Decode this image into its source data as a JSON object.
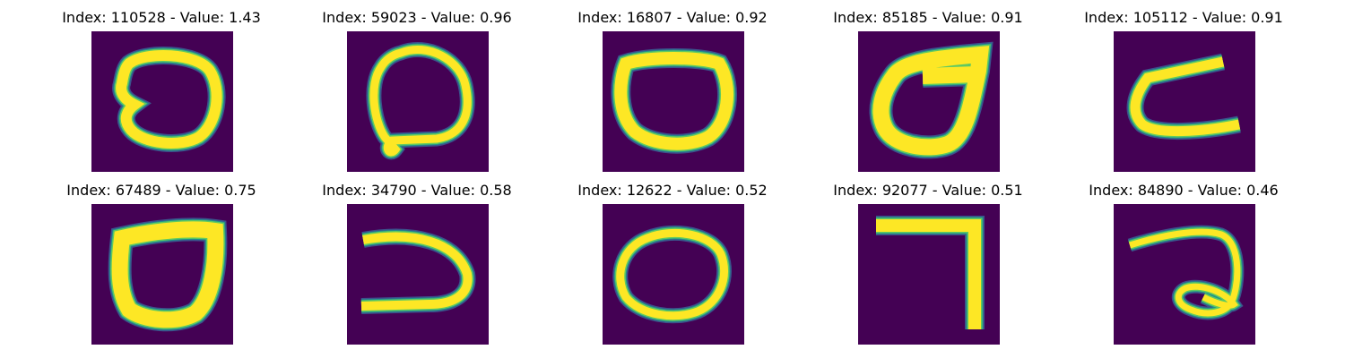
{
  "figure": {
    "palette": {
      "background": "#440154",
      "low": "#3b528b",
      "mid": "#21918c",
      "highmid": "#5ec962",
      "high": "#fde725"
    }
  },
  "chart_data": {
    "type": "image-grid",
    "colormap": "viridis",
    "grid": {
      "rows": 2,
      "cols": 5
    },
    "panels": [
      {
        "title": "Index: 110528 - Value: 1.43",
        "index": 110528,
        "value": 1.43,
        "glyph": "ring-dent"
      },
      {
        "title": "Index: 59023 - Value: 0.96",
        "index": 59023,
        "value": 0.96,
        "glyph": "loop-tail"
      },
      {
        "title": "Index: 16807 - Value: 0.92",
        "index": 16807,
        "value": 0.92,
        "glyph": "flat-ring"
      },
      {
        "title": "Index: 85185 - Value: 0.91",
        "index": 85185,
        "value": 0.91,
        "glyph": "slanted-zero"
      },
      {
        "title": "Index: 105112 - Value: 0.91",
        "index": 105112,
        "value": 0.91,
        "glyph": "c-shape"
      },
      {
        "title": "Index: 67489 - Value: 0.75",
        "index": 67489,
        "value": 0.75,
        "glyph": "thick-zero"
      },
      {
        "title": "Index: 34790 - Value: 0.58",
        "index": 34790,
        "value": 0.58,
        "glyph": "reverse-c"
      },
      {
        "title": "Index: 12622 - Value: 0.52",
        "index": 12622,
        "value": 0.52,
        "glyph": "oval"
      },
      {
        "title": "Index: 92077 - Value: 0.51",
        "index": 92077,
        "value": 0.51,
        "glyph": "seven"
      },
      {
        "title": "Index: 84890 - Value: 0.46",
        "index": 84890,
        "value": 0.46,
        "glyph": "curl-two"
      }
    ]
  }
}
